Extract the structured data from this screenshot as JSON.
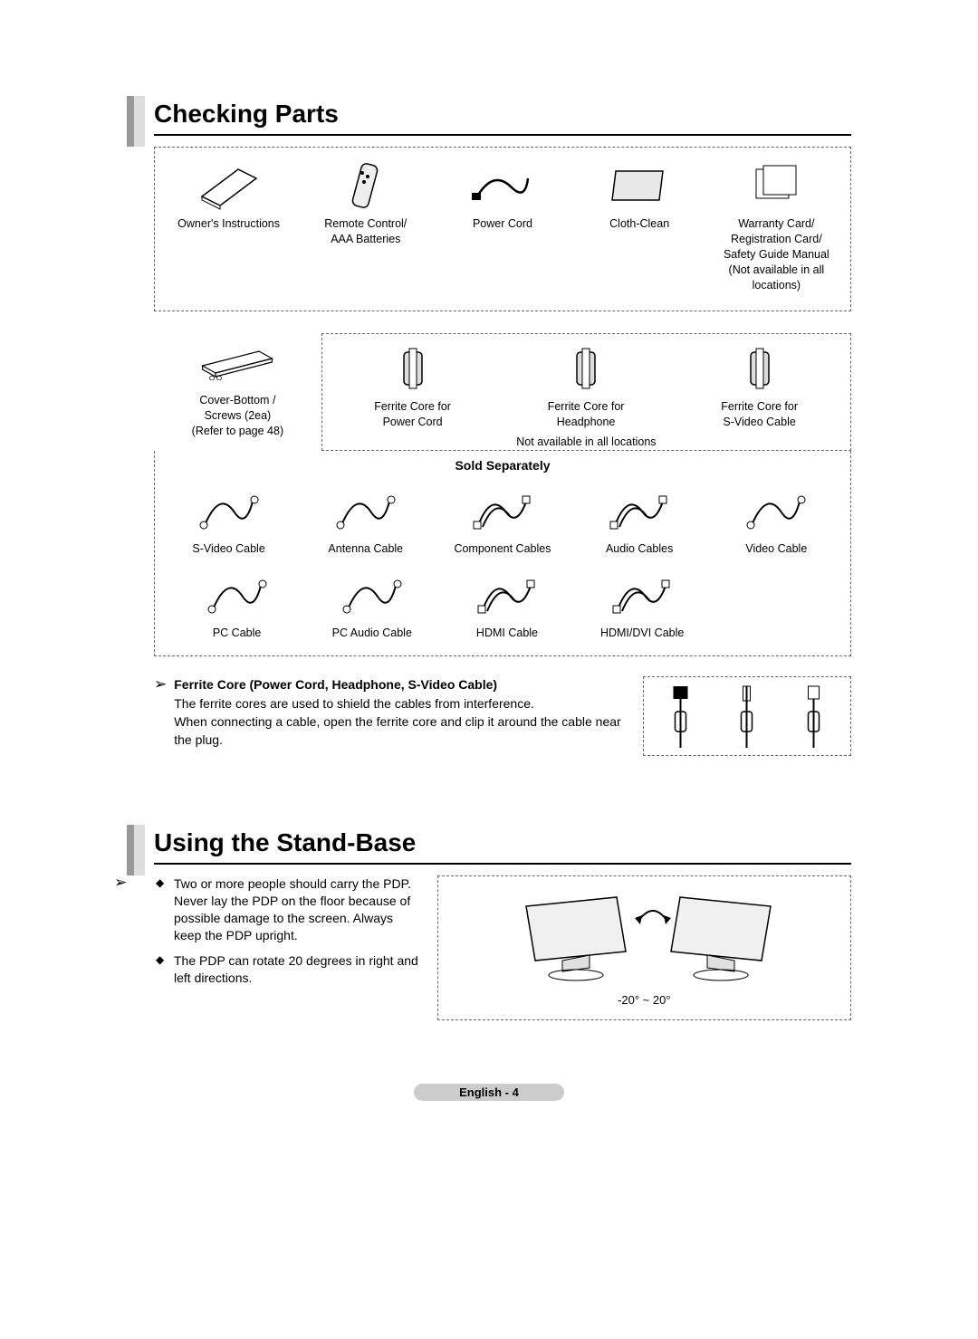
{
  "section1": {
    "title": "Checking Parts",
    "row1": [
      {
        "name": "owners-instructions",
        "label": "Owner's Instructions"
      },
      {
        "name": "remote-control",
        "label": "Remote Control/\nAAA Batteries"
      },
      {
        "name": "power-cord",
        "label": "Power Cord"
      },
      {
        "name": "cloth-clean",
        "label": "Cloth-Clean"
      },
      {
        "name": "warranty-card",
        "label": "Warranty Card/\nRegistration Card/\nSafety Guide Manual\n(Not available in all\nlocations)"
      }
    ],
    "row2_left": {
      "name": "cover-bottom",
      "label": "Cover-Bottom /\nScrews (2ea)\n(Refer to page 48)"
    },
    "row2_right": [
      {
        "name": "ferrite-power",
        "label": "Ferrite Core for\nPower Cord"
      },
      {
        "name": "ferrite-headphone",
        "label": "Ferrite Core for\nHeadphone"
      },
      {
        "name": "ferrite-svideo",
        "label": "Ferrite Core for\nS-Video Cable"
      }
    ],
    "row2_note": "Not available in all locations",
    "sold_title": "Sold Separately",
    "sold_row1": [
      {
        "name": "svideo-cable",
        "label": "S-Video Cable"
      },
      {
        "name": "antenna-cable",
        "label": "Antenna Cable"
      },
      {
        "name": "component-cables",
        "label": "Component Cables"
      },
      {
        "name": "audio-cables",
        "label": "Audio Cables"
      },
      {
        "name": "video-cable",
        "label": "Video Cable"
      }
    ],
    "sold_row2": [
      {
        "name": "pc-cable",
        "label": "PC Cable"
      },
      {
        "name": "pc-audio-cable",
        "label": "PC Audio Cable"
      },
      {
        "name": "hdmi-cable",
        "label": "HDMI Cable"
      },
      {
        "name": "hdmi-dvi-cable",
        "label": "HDMI/DVI Cable"
      }
    ],
    "ferrite": {
      "title": "Ferrite Core (Power Cord, Headphone, S-Video Cable)",
      "body": "The ferrite cores are used to shield the cables from interference.\nWhen connecting a cable, open the ferrite core and clip it around the cable near the plug."
    }
  },
  "section2": {
    "title": "Using the Stand-Base",
    "bullets": [
      "Two or more people should carry the PDP. Never lay the PDP on the floor because of possible damage to the screen. Always keep the PDP upright.",
      "The PDP can rotate 20 degrees in right and left directions."
    ],
    "angle": "-20° ~ 20°"
  },
  "footer": "English - 4"
}
